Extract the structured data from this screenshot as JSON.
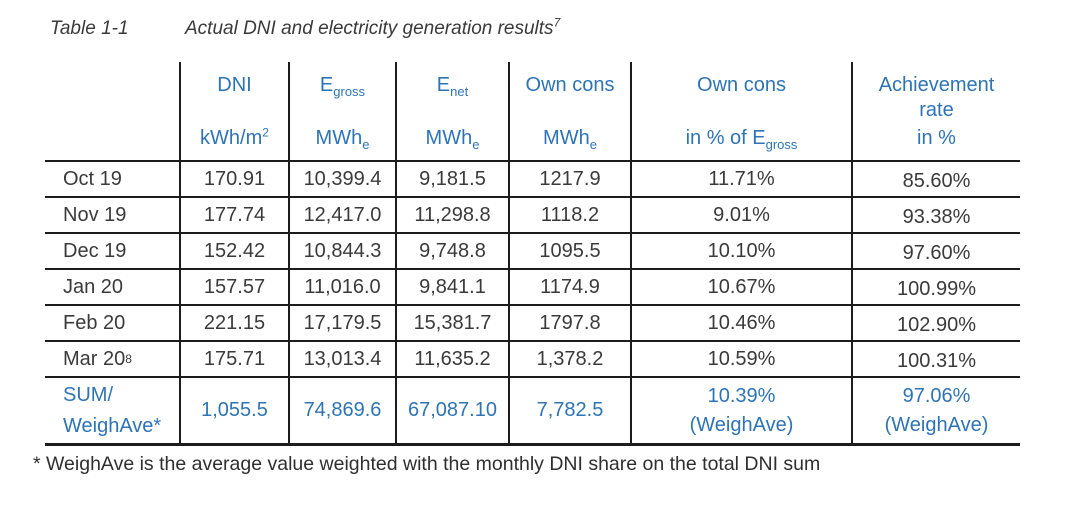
{
  "title": {
    "label": "Table 1-1",
    "text": "Actual DNI and electricity generation results",
    "sup": "7"
  },
  "table": {
    "header": [
      {
        "name": "empty",
        "line1": "",
        "line2": ""
      },
      {
        "name": "dni",
        "line1": "DNI",
        "line2": "kWh/m",
        "line2_sup": "2"
      },
      {
        "name": "e-gross",
        "line1": "E",
        "line1_sub": "gross",
        "line2": "MWh",
        "line2_sub": "e"
      },
      {
        "name": "e-net",
        "line1": "E",
        "line1_sub": "net",
        "line2": "MWh",
        "line2_sub": "e"
      },
      {
        "name": "own-cons",
        "line1": "Own cons",
        "line2": "MWh",
        "line2_sub": "e"
      },
      {
        "name": "own-cons-percent",
        "line1": "Own cons",
        "line2": "in % of E",
        "line2_sub": "gross"
      },
      {
        "name": "achievement-rate",
        "line1": "Achievement\nrate",
        "line2": "in %"
      }
    ],
    "rows": [
      {
        "label": "Oct 19",
        "values": [
          "170.91",
          "10,399.4",
          "9,181.5",
          "1217.9",
          "11.71%",
          "85.60%"
        ]
      },
      {
        "label": "Nov 19",
        "values": [
          "177.74",
          "12,417.0",
          "11,298.8",
          "1118.2",
          "9.01%",
          "93.38%"
        ]
      },
      {
        "label": "Dec 19",
        "values": [
          "152.42",
          "10,844.3",
          "9,748.8",
          "1095.5",
          "10.10%",
          "97.60%"
        ]
      },
      {
        "label": "Jan 20",
        "values": [
          "157.57",
          "11,016.0",
          "9,841.1",
          "1174.9",
          "10.67%",
          "100.99%"
        ]
      },
      {
        "label": "Feb 20",
        "values": [
          "221.15",
          "17,179.5",
          "15,381.7",
          "1797.8",
          "10.46%",
          "102.90%"
        ]
      },
      {
        "label": "Mar 20",
        "label_sup": "8",
        "values": [
          "175.71",
          "13,013.4",
          "11,635.2",
          "1,378.2",
          "10.59%",
          "100.31%"
        ]
      }
    ],
    "sum_row": {
      "label": "SUM/\nWeighAve*",
      "values": [
        "1,055.5",
        "74,869.6",
        "67,087.10",
        "7,782.5",
        "10.39%\n(WeighAve)",
        "97.06%\n(WeighAve)"
      ]
    }
  },
  "footnote": "* WeighAve is the average value weighted with the monthly DNI share on the total DNI sum",
  "colors": {
    "accent_blue": "#2e74b5",
    "border": "#1c1c1c",
    "text": "#3a3a3a"
  }
}
